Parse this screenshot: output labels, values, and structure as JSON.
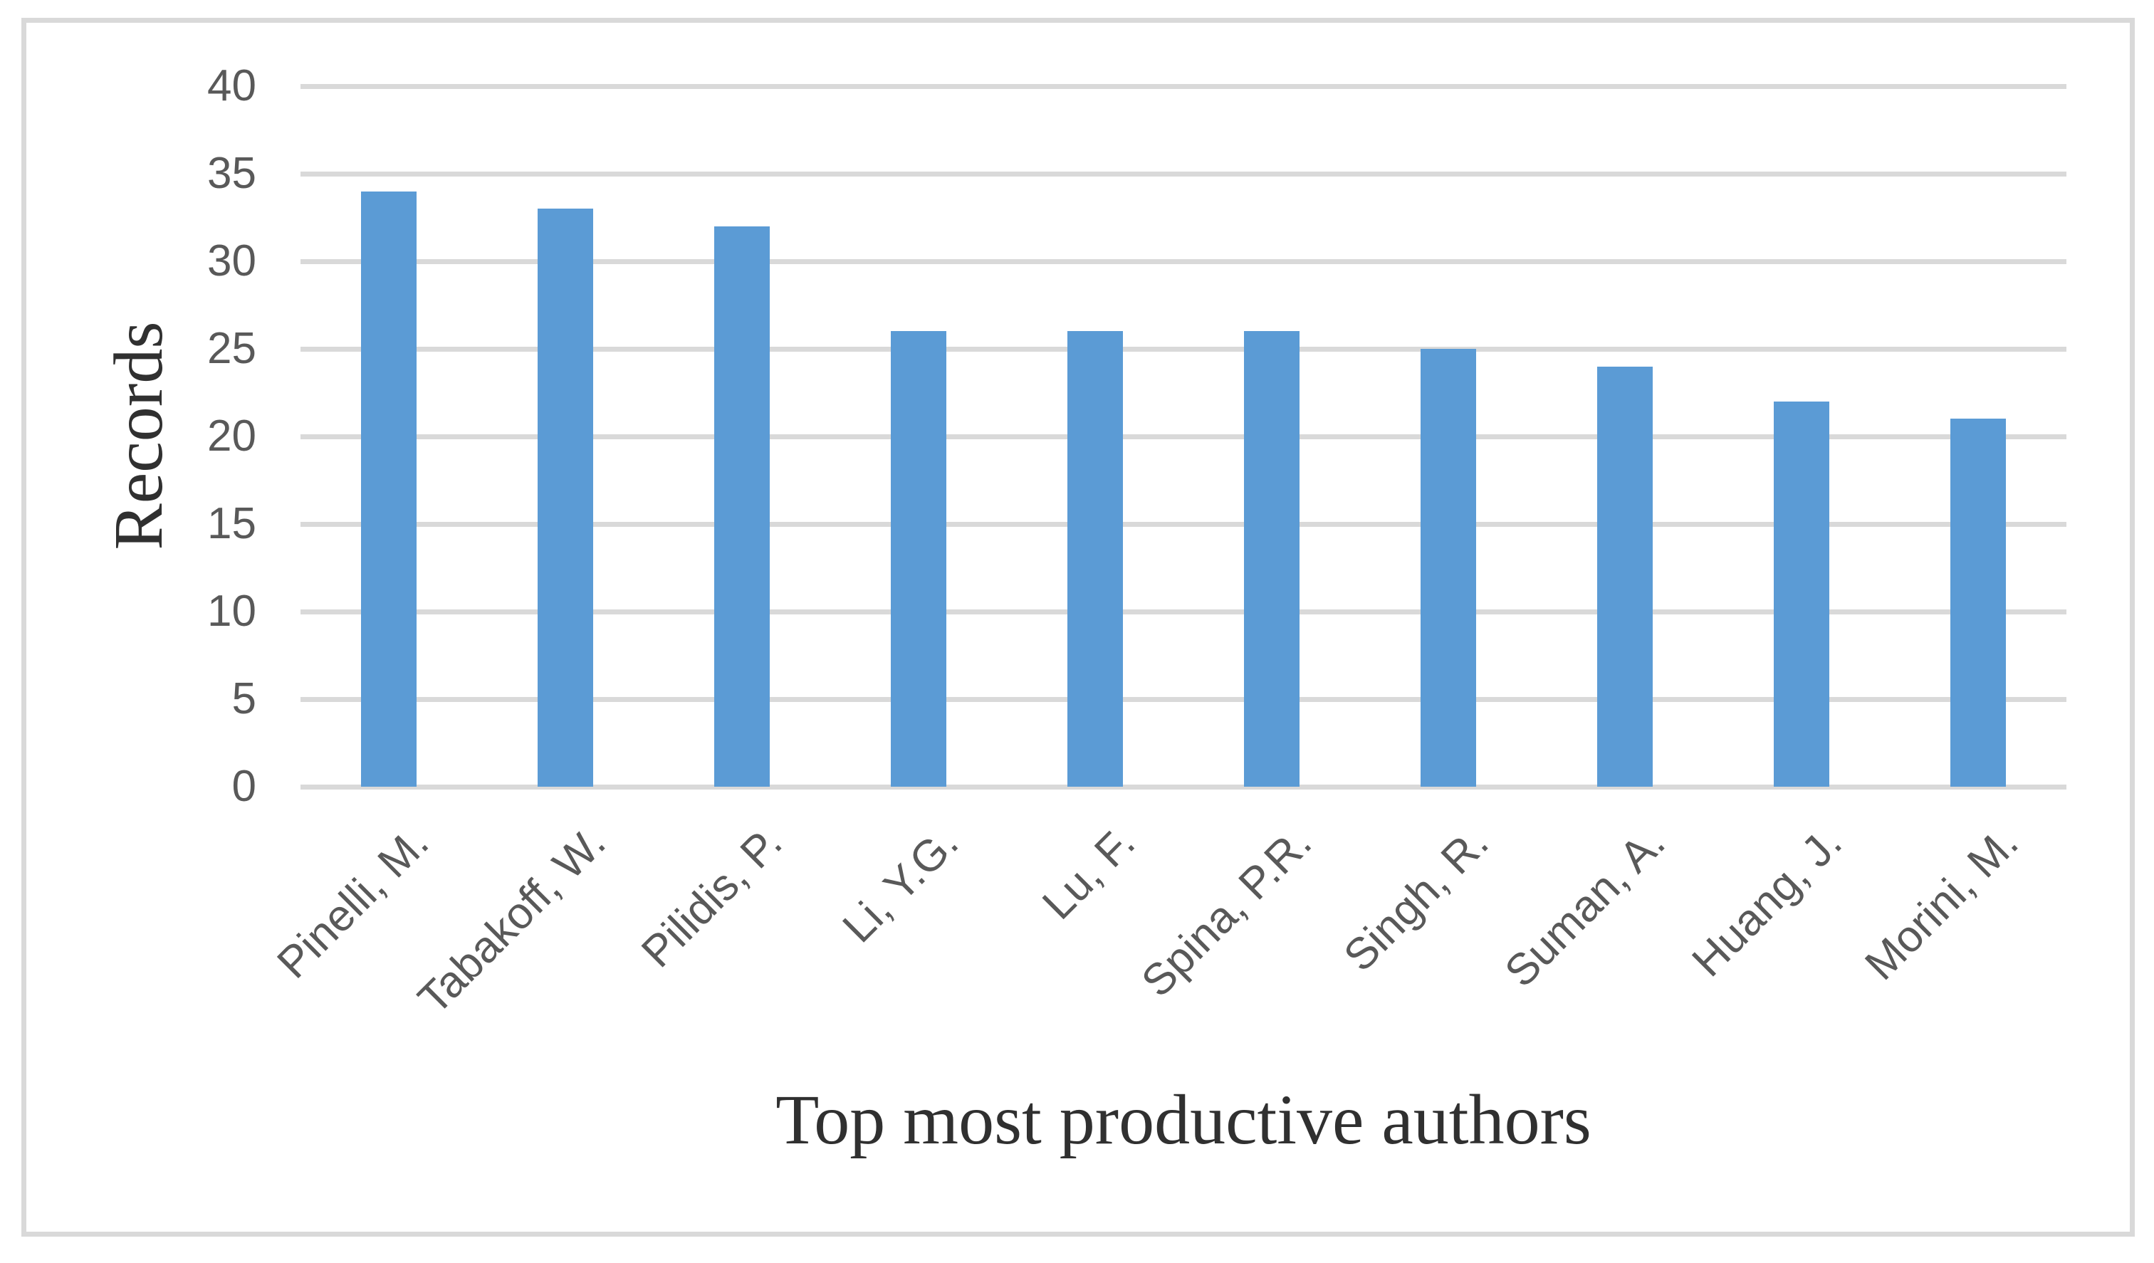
{
  "chart_data": {
    "type": "bar",
    "title": "",
    "categories": [
      "Pinelli, M.",
      "Tabakoff, W.",
      "Pilidis, P.",
      "Li, Y.G.",
      "Lu, F.",
      "Spina, P.R.",
      "Singh, R.",
      "Suman, A.",
      "Huang, J.",
      "Morini, M."
    ],
    "values": [
      34,
      33,
      32,
      26,
      26,
      26,
      25,
      24,
      22,
      21
    ],
    "xlabel": "Top most productive authors",
    "ylabel": "Records",
    "ylim": [
      0,
      40
    ],
    "yticks": [
      0,
      5,
      10,
      15,
      20,
      25,
      30,
      35,
      40
    ],
    "grid": true,
    "legend": false,
    "colors": {
      "bar": "#5B9BD5",
      "gridline": "#D9D9D9",
      "border": "#D9D9D9",
      "tick_labels": "#595959",
      "axis_titles": "#303030"
    }
  }
}
